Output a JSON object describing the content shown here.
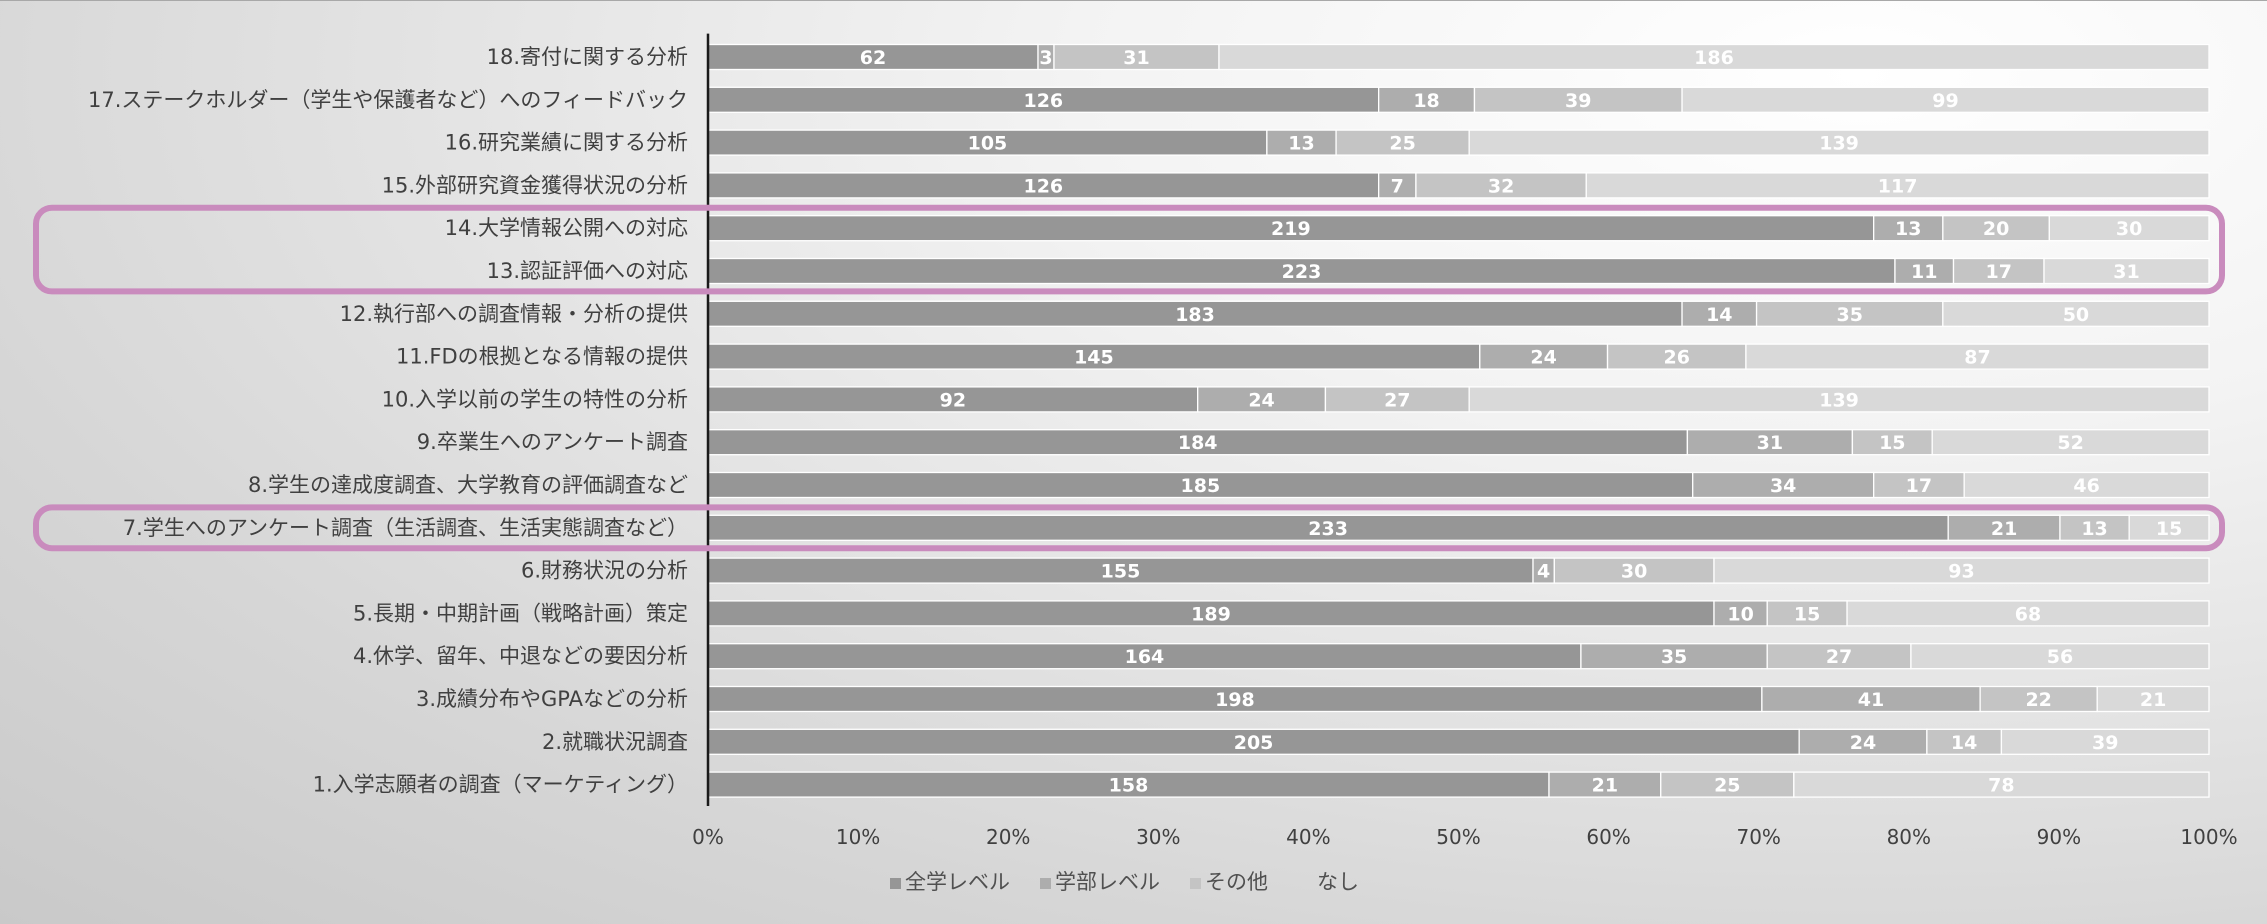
{
  "chart_data": {
    "type": "bar",
    "orientation": "horizontal",
    "stacked": "percent",
    "categories": [
      "18.寄付に関する分析",
      "17.ステークホルダー（学生や保護者など）へのフィードバック",
      "16.研究業績に関する分析",
      "15.外部研究資金獲得状況の分析",
      "14.大学情報公開への対応",
      "13.認証評価への対応",
      "12.執行部への調査情報・分析の提供",
      "11.FDの根拠となる情報の提供",
      "10.入学以前の学生の特性の分析",
      "9.卒業生へのアンケート調査",
      "8.学生の達成度調査、大学教育の評価調査など",
      "7.学生へのアンケート調査（生活調査、生活実態調査など）",
      "6.財務状況の分析",
      "5.長期・中期計画（戦略計画）策定",
      "4.休学、留年、中退などの要因分析",
      "3.成績分布やGPAなどの分析",
      "2.就職状況調査",
      "1.入学志願者の調査（マーケティング）"
    ],
    "series": [
      {
        "name": "全学レベル",
        "color": "#969696",
        "values": [
          62,
          126,
          105,
          126,
          219,
          223,
          183,
          145,
          92,
          184,
          185,
          233,
          155,
          189,
          164,
          198,
          205,
          158
        ]
      },
      {
        "name": "学部レベル",
        "color": "#adadad",
        "values": [
          3,
          18,
          13,
          7,
          13,
          11,
          14,
          24,
          24,
          31,
          34,
          21,
          4,
          10,
          35,
          41,
          24,
          21
        ]
      },
      {
        "name": "その他",
        "color": "#c4c4c4",
        "values": [
          31,
          39,
          25,
          32,
          20,
          17,
          35,
          26,
          27,
          15,
          17,
          13,
          30,
          15,
          27,
          22,
          14,
          25
        ]
      },
      {
        "name": "なし",
        "color": "#d9d9d9",
        "values": [
          186,
          99,
          139,
          117,
          30,
          31,
          50,
          87,
          139,
          52,
          46,
          15,
          93,
          68,
          56,
          21,
          39,
          78
        ]
      }
    ],
    "xticks": [
      "0%",
      "10%",
      "20%",
      "30%",
      "40%",
      "50%",
      "60%",
      "70%",
      "80%",
      "90%",
      "100%"
    ],
    "xlim": [
      0,
      100
    ],
    "highlighted_categories": [
      "14.大学情報公開への対応",
      "13.認証評価への対応",
      "7.学生へのアンケート調査（生活調査、生活実態調査など）"
    ],
    "highlight_color": "#c98bbd",
    "legend_position": "bottom",
    "grid": false
  }
}
